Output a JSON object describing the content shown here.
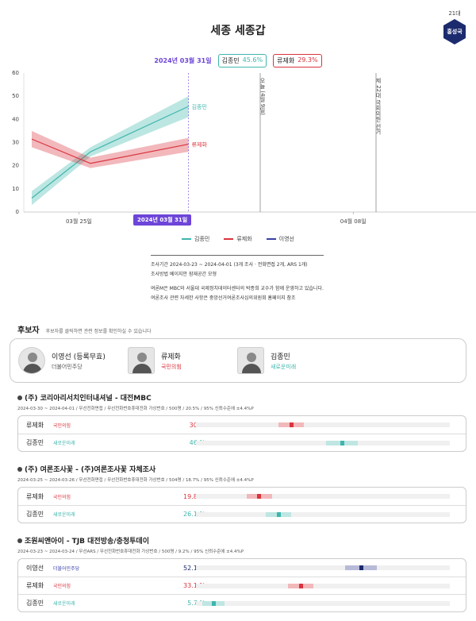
{
  "badge": {
    "term": "21대",
    "region": "홍성국"
  },
  "title": "세종 세종갑",
  "header": {
    "date": "2024년 03월 31일",
    "tags": [
      {
        "name": "김종민",
        "pct": "45.6%"
      },
      {
        "name": "류제화",
        "pct": "29.3%"
      }
    ]
  },
  "chart_data": {
    "type": "line",
    "y_ticks": [
      "0",
      "10",
      "20",
      "30",
      "40",
      "50",
      "60"
    ],
    "ylim": [
      0,
      60
    ],
    "x_ticks": [
      "03월 25일",
      "04월 08일",
      "04월 15일"
    ],
    "events": [
      "오늘 (4월 9일)",
      "제 22대 국회의원 선거"
    ],
    "selected_date": "2024년 03월 31일",
    "series": [
      {
        "name": "김종민",
        "color": "#3fb6ad",
        "points": [
          [
            "03-23",
            6
          ],
          [
            "03-26",
            26
          ],
          [
            "03-31",
            45.6
          ]
        ],
        "ci_low": [
          3,
          24,
          41
        ],
        "ci_high": [
          9,
          28,
          50
        ]
      },
      {
        "name": "류제화",
        "color": "#d9343e",
        "points": [
          [
            "03-23",
            31.5
          ],
          [
            "03-26",
            21
          ],
          [
            "03-31",
            29.3
          ]
        ],
        "ci_low": [
          28,
          19,
          26
        ],
        "ci_high": [
          35,
          23.5,
          32
        ]
      }
    ],
    "legend": [
      "김종민",
      "류제화",
      "이영선"
    ],
    "legend_colors": [
      "#3fb6ad",
      "#d9343e",
      "#3a3fa8"
    ]
  },
  "method": {
    "line1": "조사기간 2024-03-23 ~ 2024-04-01 (3개 조사 · 전화면접 2개, ARS 1개)",
    "line2": "조사방법 베이지안 잠재공간 모형",
    "line3": "여론M은 MBC와 서울대 국제정치데이터센터의 박종희 교수가 함께 운영하고 있습니다.",
    "line4": "여론조사 관련 자세한 사항은 중앙선거여론조사심의위원회 홈페이지 참조"
  },
  "candidates_section": {
    "title": "후보자",
    "note": "후보자를 클릭하면 관련 정보를 확인하실 수 있습니다",
    "list": [
      {
        "name": "이영선 (등록무효)",
        "party": "더불어민주당",
        "party_color": "#3a3fa8"
      },
      {
        "name": "류제화",
        "party": "국민의힘",
        "party_color": "#d9343e"
      },
      {
        "name": "김종민",
        "party": "새로운미래",
        "party_color": "#3fb6ad"
      }
    ]
  },
  "polls": [
    {
      "title": "(주) 코리아리서치인터내셔널 - 대전MBC",
      "meta": "2024-03-30 ~ 2024-04-01 / 무선전화면접 / 무선전화번호휴대전화 가상번호 / 500명 / 20.5% / 95% 신뢰수준에 ±4.4%P",
      "rows": [
        {
          "name": "류제화",
          "party": "국민의힘",
          "pct": "30 %",
          "value": 30,
          "ci": [
            26,
            34
          ],
          "color": "#d9343e",
          "light": "#f2b9bc"
        },
        {
          "name": "김종민",
          "party": "새로운미래",
          "pct": "46 %",
          "value": 46,
          "ci": [
            41,
            51
          ],
          "color": "#3fb6ad",
          "light": "#bfe6e2"
        }
      ]
    },
    {
      "title": "(주) 여론조사꽃 - (주)여론조사꽃 자체조사",
      "meta": "2024-03-25 ~ 2024-03-26 / 무선전화면접 / 무선전화번호휴대전화 가상번호 / 504명 / 18.7% / 95% 신뢰수준에 ±4.4%P",
      "rows": [
        {
          "name": "류제화",
          "party": "국민의힘",
          "pct": "19.8 %",
          "value": 19.8,
          "ci": [
            16,
            24
          ],
          "color": "#d9343e",
          "light": "#f2b9bc"
        },
        {
          "name": "김종민",
          "party": "새로운미래",
          "pct": "26.1 %",
          "value": 26.1,
          "ci": [
            22,
            30
          ],
          "color": "#3fb6ad",
          "light": "#bfe6e2"
        }
      ]
    },
    {
      "title": "조원씨앤아이 - TJB 대전방송/충청투데이",
      "meta": "2024-03-23 ~ 2024-03-24 / 무선ARS / 무선전화번호휴대전화 가상번호 / 500명 / 9.2% / 95% 신뢰수준에 ±4.4%P",
      "rows": [
        {
          "name": "이영선",
          "party": "더불어민주당",
          "pct": "52.1 %",
          "value": 52.1,
          "ci": [
            47,
            57
          ],
          "color": "#1c2b6e",
          "light": "#b7bad8"
        },
        {
          "name": "류제화",
          "party": "국민의힘",
          "pct": "33.1 %",
          "value": 33.1,
          "ci": [
            29,
            37
          ],
          "color": "#d9343e",
          "light": "#f2b9bc"
        },
        {
          "name": "김종민",
          "party": "새로운미래",
          "pct": "5.7 %",
          "value": 5.7,
          "ci": [
            2,
            9
          ],
          "color": "#3fb6ad",
          "light": "#bfe6e2"
        }
      ]
    }
  ]
}
